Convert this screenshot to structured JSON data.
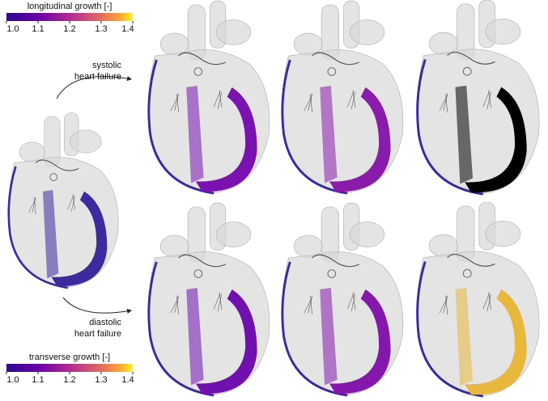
{
  "colorbars": [
    {
      "title": "longitudinal growth [-]",
      "lim": [
        1,
        1.4
      ],
      "ticks": [
        {
          "value": 1,
          "label": "1.0"
        },
        1.1,
        1.2,
        1.3,
        1.4
      ]
    },
    {
      "title": "transverse growth [-]",
      "lim": [
        1,
        1.4
      ],
      "ticks": [
        {
          "value": 1,
          "label": "1.0"
        },
        1.1,
        1.2,
        1.3,
        1.4
      ]
    }
  ],
  "annotations": [
    {
      "lines": [
        "systolic",
        "heart failure"
      ]
    },
    {
      "lines": [
        "diastolic",
        "heart failure"
      ]
    }
  ]
}
